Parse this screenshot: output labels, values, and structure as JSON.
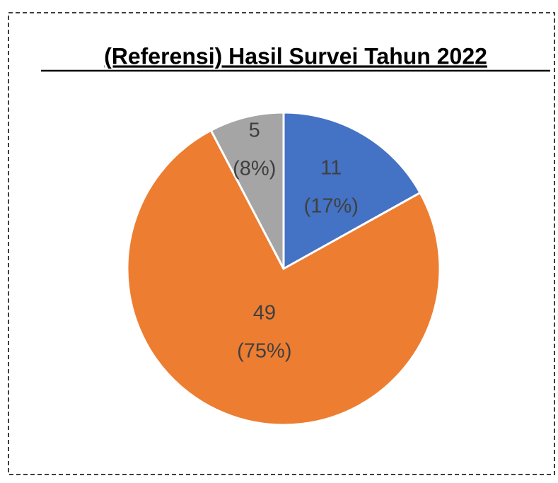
{
  "chart_data": {
    "type": "pie",
    "title": "(Referensi) Hasil Survei Tahun 2022",
    "categories": [
      null,
      null,
      null
    ],
    "values": [
      11,
      49,
      5
    ],
    "percent_labels": [
      "(17%)",
      "(75%)",
      "(8%)"
    ],
    "colors": [
      "#4472c4",
      "#ed7d31",
      "#a5a5a5"
    ]
  }
}
